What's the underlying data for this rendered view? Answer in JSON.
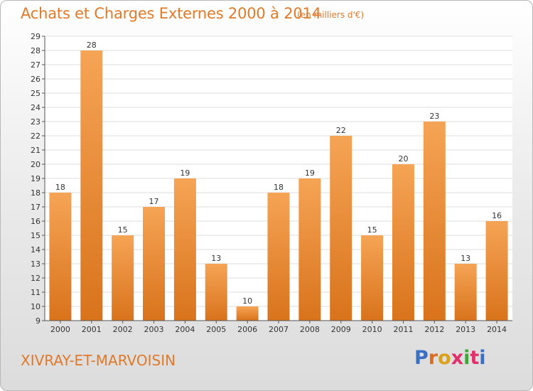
{
  "title": "Achats et Charges Externes 2000 à 2014",
  "subtitle": "(en milliers d'€)",
  "town": "XIVRAY-ET-MARVOISIN",
  "logo": {
    "text": "Proxiti",
    "colors": [
      "#3a6fc2",
      "#e06a1e",
      "#d9a21a",
      "#e0306a",
      "#3fa63a",
      "#e0306a",
      "#3a6fc2"
    ]
  },
  "colors": {
    "bar_light": "#f5a455",
    "bar_dark": "#d9731c",
    "accent": "#e07a2a",
    "grid": "#dddddd",
    "axis": "#555555"
  },
  "chart_data": {
    "type": "bar",
    "categories": [
      "2000",
      "2001",
      "2002",
      "2003",
      "2004",
      "2005",
      "2006",
      "2007",
      "2008",
      "2009",
      "2010",
      "2011",
      "2012",
      "2013",
      "2014"
    ],
    "values": [
      18,
      28,
      15,
      17,
      19,
      13,
      10,
      18,
      19,
      22,
      15,
      20,
      23,
      13,
      16
    ],
    "ylim": [
      9,
      29
    ],
    "yticks": [
      9,
      10,
      11,
      12,
      13,
      14,
      15,
      16,
      17,
      18,
      19,
      20,
      21,
      22,
      23,
      24,
      25,
      26,
      27,
      28,
      29
    ],
    "grid": true,
    "data_labels": true
  }
}
